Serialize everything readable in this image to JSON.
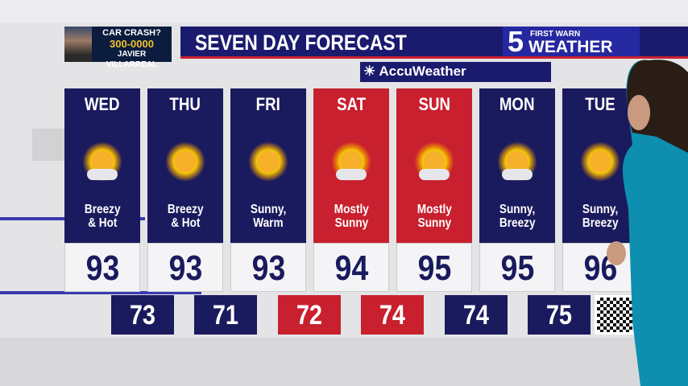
{
  "promo": {
    "line1": "CAR CRASH?",
    "phone": "300-0000",
    "name": "JAVIER VILLARREAL"
  },
  "header": {
    "title": "SEVEN DAY FORECAST",
    "logo_number": "5",
    "logo_top": "FIRST WARN",
    "logo_bottom": "WEATHER",
    "sponsor": "AccuWeather"
  },
  "colors": {
    "navy": "#1a1a5e",
    "red": "#c8202e"
  },
  "days": [
    {
      "day": "WED",
      "icon": "partly-sunny",
      "desc1": "Breezy",
      "desc2": "& Hot",
      "high": "93",
      "low": "73",
      "color": "navy"
    },
    {
      "day": "THU",
      "icon": "sunny",
      "desc1": "Breezy",
      "desc2": "& Hot",
      "high": "93",
      "low": "71",
      "color": "navy"
    },
    {
      "day": "FRI",
      "icon": "sunny",
      "desc1": "Sunny,",
      "desc2": "Warm",
      "high": "93",
      "low": "72",
      "color": "navy"
    },
    {
      "day": "SAT",
      "icon": "partly-sunny",
      "desc1": "Mostly",
      "desc2": "Sunny",
      "high": "94",
      "low": "74",
      "color": "red"
    },
    {
      "day": "SUN",
      "icon": "partly-sunny",
      "desc1": "Mostly",
      "desc2": "Sunny",
      "high": "95",
      "low": "74",
      "color": "red"
    },
    {
      "day": "MON",
      "icon": "partly-sunny",
      "desc1": "Sunny,",
      "desc2": "Breezy",
      "high": "95",
      "low": "75",
      "color": "navy"
    },
    {
      "day": "TUE",
      "icon": "sunny",
      "desc1": "Sunny,",
      "desc2": "Breezy",
      "high": "96",
      "color": "navy"
    }
  ],
  "low_colors": [
    "navy",
    "navy",
    "red",
    "red",
    "navy",
    "navy"
  ]
}
